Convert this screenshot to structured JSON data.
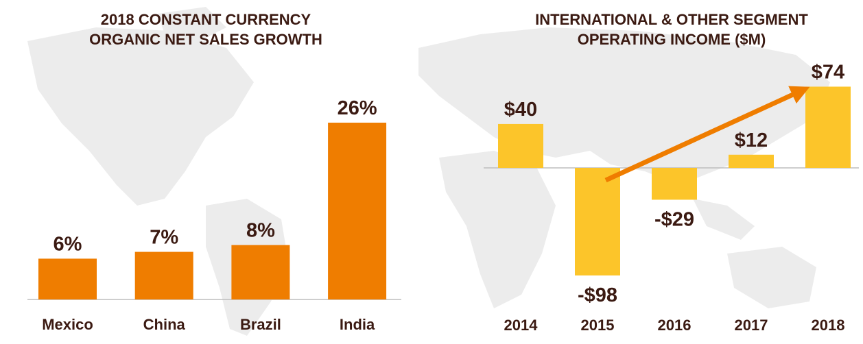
{
  "chart_data": [
    {
      "type": "bar",
      "title_lines": [
        "2018 CONSTANT CURRENCY",
        "ORGANIC NET SALES GROWTH"
      ],
      "categories": [
        "Mexico",
        "China",
        "Brazil",
        "India"
      ],
      "values": [
        6,
        7,
        8,
        26
      ],
      "value_labels": [
        "6%",
        "7%",
        "8%",
        "26%"
      ],
      "unit": "%",
      "ylim": [
        0,
        30
      ],
      "grid": false,
      "color": "#ef7d00"
    },
    {
      "type": "bar",
      "title_lines": [
        "INTERNATIONAL & OTHER SEGMENT",
        "OPERATING INCOME ($M)"
      ],
      "categories": [
        "2014",
        "2015",
        "2016",
        "2017",
        "2018"
      ],
      "values": [
        40,
        -98,
        -29,
        12,
        74
      ],
      "value_labels": [
        "$40",
        "-$98",
        "-$29",
        "$12",
        "$74"
      ],
      "unit": "$M",
      "ylim": [
        -110,
        90
      ],
      "grid": false,
      "color": "#fcc52a",
      "trend_arrow": {
        "from_category": "2015",
        "to_category": "2018",
        "color": "#ef7d00"
      }
    }
  ]
}
